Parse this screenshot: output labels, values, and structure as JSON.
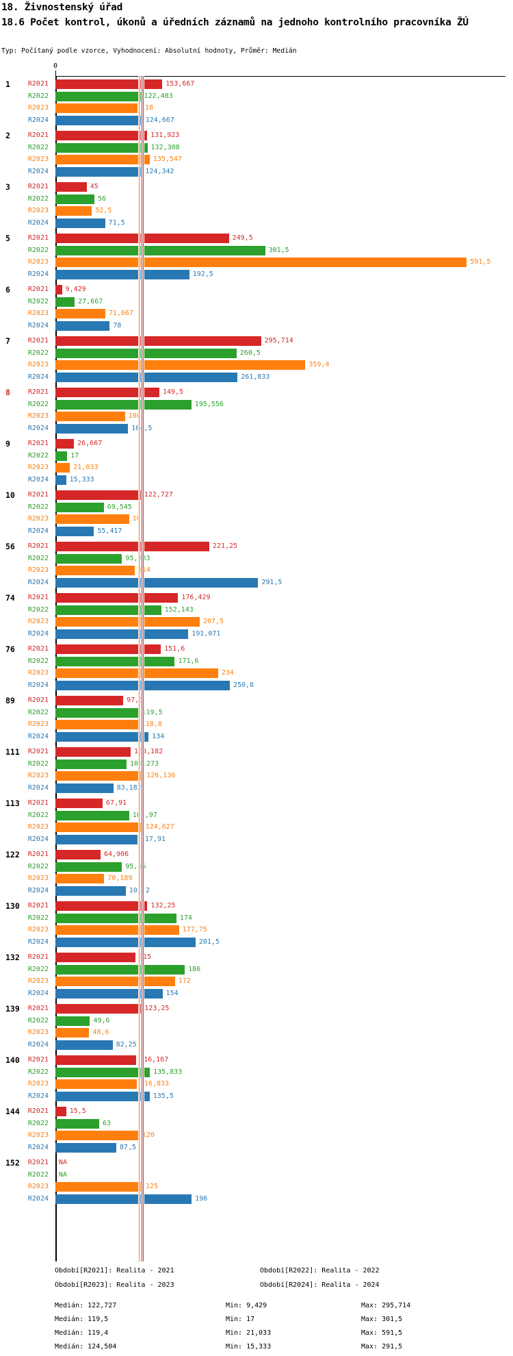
{
  "header": {
    "title1": "18. Živnostenský úřad",
    "title2": "18.6 Počet kontrol, úkonů a úředních záznamů na jednoho kontrolního pracovníka ŽÚ",
    "meta": "Typ: Počítaný podle vzorce, Vyhodnocení: Absolutní hodnoty, Průměr: Medián"
  },
  "axis": {
    "zero_label": "0"
  },
  "chart_data": {
    "type": "bar",
    "orientation": "horizontal",
    "title": "18.6 Počet kontrol, úkonů a úředních záznamů na jednoho kontrolního pracovníka ŽÚ",
    "xlabel": "",
    "ylabel": "",
    "xlim": [
      0,
      647
    ],
    "grid": false,
    "legend_position": "bottom",
    "categories": [
      "1",
      "2",
      "3",
      "5",
      "6",
      "7",
      "8",
      "9",
      "10",
      "56",
      "74",
      "76",
      "89",
      "111",
      "113",
      "122",
      "130",
      "132",
      "139",
      "140",
      "144",
      "152"
    ],
    "highlighted_category": "8",
    "series": [
      {
        "name": "R2021",
        "legend": "Období[R2021]: Realita - 2021",
        "color": "#d62728",
        "values": [
          153.667,
          131.923,
          45,
          249.5,
          9.429,
          295.714,
          149.5,
          26.667,
          122.727,
          221.25,
          176.429,
          151.6,
          97.5,
          108.182,
          67.91,
          64.906,
          132.25,
          115,
          123.25,
          116.167,
          15.5,
          null
        ],
        "labels": [
          "153,667",
          "131,923",
          "45",
          "249,5",
          "9,429",
          "295,714",
          "149,5",
          "26,667",
          "122,727",
          "221,25",
          "176,429",
          "151,6",
          "97,5",
          "108,182",
          "67,91",
          "64,906",
          "132,25",
          "115",
          "123,25",
          "116,167",
          "15,5",
          "NA"
        ],
        "median": 122.727,
        "median_label": "Medián: 122,727",
        "min_label": "Min: 9,429",
        "max_label": "Max: 295,714"
      },
      {
        "name": "R2022",
        "legend": "Období[R2022]: Realita - 2022",
        "color": "#2ca02c",
        "values": [
          122.483,
          132.308,
          56,
          301.5,
          27.667,
          260.5,
          195.556,
          17,
          69.545,
          95.833,
          152.143,
          171.6,
          119.5,
          102.273,
          105.97,
          95.66,
          174,
          186,
          49.6,
          135.833,
          63,
          null
        ],
        "labels": [
          "122,483",
          "132,308",
          "56",
          "301,5",
          "27,667",
          "260,5",
          "195,556",
          "17",
          "69,545",
          "95,833",
          "152,143",
          "171,6",
          "119,5",
          "102,273",
          "105,97",
          "95,66",
          "174",
          "186",
          "49,6",
          "135,833",
          "63",
          "NA"
        ],
        "median": 119.5,
        "median_label": "Medián: 119,5",
        "min_label": "Min: 17",
        "max_label": "Max: 301,5"
      },
      {
        "name": "R2023",
        "legend": "Období[R2023]: Realita - 2023",
        "color": "#ff7f0e",
        "values": [
          118,
          135.547,
          52.5,
          591.5,
          71.667,
          359.4,
          100,
          21.033,
          106,
          114,
          207.5,
          234,
          118.8,
          126.136,
          124.627,
          70.189,
          177.75,
          172,
          48.6,
          116.833,
          120,
          125
        ],
        "labels": [
          "118",
          "135,547",
          "52,5",
          "591,5",
          "71,667",
          "359,4",
          "100",
          "21,033",
          "106",
          "114",
          "207,5",
          "234",
          "118,8",
          "126,136",
          "124,627",
          "70,189",
          "177,75",
          "172",
          "48,6",
          "116,833",
          "120",
          "125"
        ],
        "median": 119.4,
        "median_label": "Medián: 119,4",
        "min_label": "Min: 21,033",
        "max_label": "Max: 591,5"
      },
      {
        "name": "R2024",
        "legend": "Období[R2024]: Realita - 2024",
        "color": "#2878b4",
        "values": [
          124.667,
          124.342,
          71.5,
          192.5,
          78,
          261.833,
          104.5,
          15.333,
          55.417,
          291.5,
          191.071,
          250.8,
          134,
          83.182,
          117.91,
          101.2,
          201.5,
          154,
          82.25,
          135.5,
          87.5,
          196
        ],
        "labels": [
          "124,667",
          "124,342",
          "71,5",
          "192,5",
          "78",
          "261,833",
          "104,5",
          "15,333",
          "55,417",
          "291,5",
          "191,071",
          "250,8",
          "134",
          "83,182",
          "117,91",
          "101,2",
          "201,5",
          "154",
          "82,25",
          "135,5",
          "87,5",
          "196"
        ],
        "median": 124.504,
        "median_label": "Medián: 124,504",
        "min_label": "Min: 15,333",
        "max_label": "Max: 291,5"
      }
    ]
  }
}
